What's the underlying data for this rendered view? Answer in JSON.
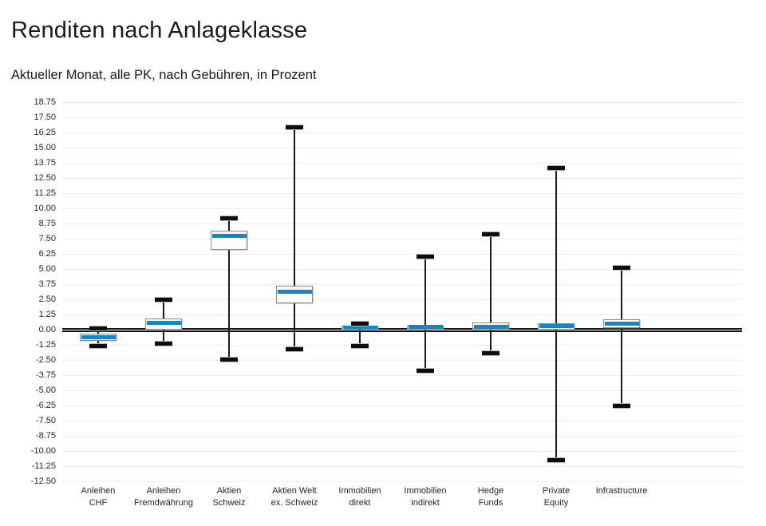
{
  "header": {
    "title": "Renditen nach Anlageklasse",
    "subtitle": "Aktueller Monat, alle PK, nach Gebühren, in Prozent"
  },
  "chart_data": {
    "type": "boxplot",
    "title": "Renditen nach Anlageklasse",
    "subtitle": "Aktueller Monat, alle PK, nach Gebühren, in Prozent",
    "xlabel": "",
    "ylabel": "",
    "unit": "Prozent",
    "ylim": [
      -12.5,
      18.75
    ],
    "ytick_step": 1.25,
    "grid": true,
    "zero_line_emphasized": true,
    "legend": "none",
    "yticks": [
      "18.75",
      "17.50",
      "16.25",
      "15.00",
      "13.75",
      "12.50",
      "11.25",
      "10.00",
      "8.75",
      "7.50",
      "6.25",
      "5.00",
      "3.75",
      "2.50",
      "1.25",
      "0.00",
      "-1.25",
      "-2.50",
      "-3.75",
      "-5.00",
      "-6.25",
      "-7.50",
      "-8.75",
      "-10.00",
      "-11.25",
      "-12.50"
    ],
    "categories": [
      [
        "Anleihen",
        "CHF"
      ],
      [
        "Anleihen",
        "Fremdwährung"
      ],
      [
        "Aktien",
        "Schweiz"
      ],
      [
        "Aktien Welt",
        "ex. Schweiz"
      ],
      [
        "Immobilien",
        "direkt"
      ],
      [
        "Immobilien",
        "indirekt"
      ],
      [
        "Hedge",
        "Funds"
      ],
      [
        "Private",
        "Equity"
      ],
      [
        "Infrastructure"
      ]
    ],
    "series": [
      {
        "name": "Anleihen CHF",
        "min": -1.35,
        "q1": -0.9,
        "median": -0.6,
        "q3": -0.35,
        "max": 0.1
      },
      {
        "name": "Anleihen Fremdwährung",
        "min": -1.15,
        "q1": 0.0,
        "median": 0.55,
        "q3": 0.9,
        "max": 2.45
      },
      {
        "name": "Aktien Schweiz",
        "min": -2.45,
        "q1": 6.6,
        "median": 7.75,
        "q3": 8.15,
        "max": 9.2
      },
      {
        "name": "Aktien Welt ex. Schweiz",
        "min": -1.6,
        "q1": 2.15,
        "median": 3.1,
        "q3": 3.65,
        "max": 16.65
      },
      {
        "name": "Immobilien direkt",
        "min": -1.35,
        "q1": 0.0,
        "median": 0.15,
        "q3": 0.3,
        "max": 0.5
      },
      {
        "name": "Immobilien indirekt",
        "min": -3.4,
        "q1": 0.0,
        "median": 0.2,
        "q3": 0.35,
        "max": 6.0
      },
      {
        "name": "Hedge Funds",
        "min": -1.95,
        "q1": 0.0,
        "median": 0.2,
        "q3": 0.6,
        "max": 7.85
      },
      {
        "name": "Private Equity",
        "min": -10.75,
        "q1": 0.0,
        "median": 0.3,
        "q3": 0.55,
        "max": 13.3
      },
      {
        "name": "Infrastructure",
        "min": -6.3,
        "q1": 0.1,
        "median": 0.5,
        "q3": 0.85,
        "max": 5.1
      }
    ],
    "colors": {
      "median": "#1485c9",
      "box_fill": "#fbfbfb",
      "box_border": "#8a8a8a",
      "whisker": "#1a1a1a",
      "cap": "#0d0d0d",
      "grid": "#ebebeb",
      "zero_line": "#141414",
      "text": "#262626"
    }
  }
}
